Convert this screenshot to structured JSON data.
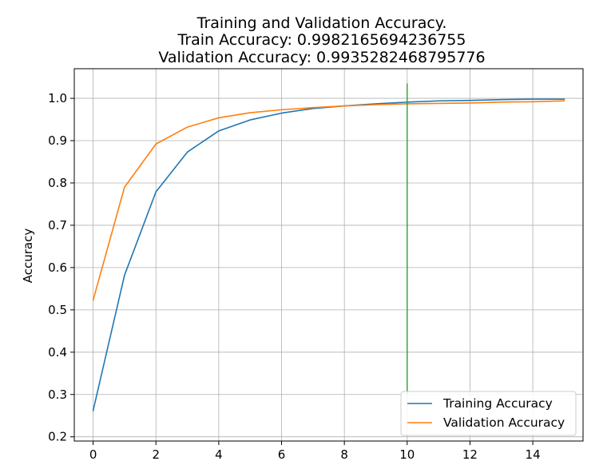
{
  "chart_data": {
    "type": "line",
    "title": [
      "Training and Validation Accuracy.",
      "Train Accuracy: 0.9982165694236755",
      "Validation Accuracy: 0.9935282468795776"
    ],
    "xlabel": "",
    "ylabel": "Accuracy",
    "xlim": [
      -0.6,
      15.6
    ],
    "ylim": [
      0.19,
      1.07
    ],
    "xticks": [
      "0",
      "2",
      "4",
      "6",
      "8",
      "10",
      "12",
      "14"
    ],
    "yticks": [
      "0.2",
      "0.3",
      "0.4",
      "0.5",
      "0.6",
      "0.7",
      "0.8",
      "0.9",
      "1.0"
    ],
    "grid": true,
    "legend_position": "lower-right",
    "x": [
      0,
      1,
      2,
      3,
      4,
      5,
      6,
      7,
      8,
      9,
      10,
      11,
      12,
      13,
      14,
      15
    ],
    "series": [
      {
        "name": "Training Accuracy",
        "color": "#1f77b4",
        "values": [
          0.262,
          0.582,
          0.779,
          0.873,
          0.923,
          0.949,
          0.965,
          0.976,
          0.982,
          0.987,
          0.991,
          0.994,
          0.995,
          0.997,
          0.998,
          0.998
        ]
      },
      {
        "name": "Validation Accuracy",
        "color": "#ff7f0e",
        "values": [
          0.523,
          0.79,
          0.892,
          0.932,
          0.954,
          0.966,
          0.973,
          0.978,
          0.982,
          0.985,
          0.987,
          0.988,
          0.989,
          0.991,
          0.992,
          0.994
        ]
      }
    ],
    "vertical_marker": {
      "x": 10,
      "y_range": [
        0.3,
        1.035
      ],
      "color": "#2ca02c"
    }
  }
}
